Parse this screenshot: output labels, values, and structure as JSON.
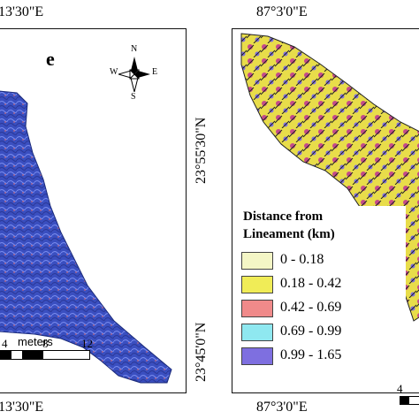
{
  "left_panel": {
    "top_coord": "13'30\"E",
    "bottom_coord": "13'30\"E",
    "panel_letter": "e",
    "compass": {
      "n": "N",
      "s": "S",
      "e": "E",
      "w": "W"
    },
    "scale_unit": "meters",
    "scale_ticks": [
      "4",
      "8",
      "12"
    ],
    "map_color": "#3a4fc0"
  },
  "center_coords": {
    "upper": "23°55'30\"N",
    "lower": "23°45'0\"N"
  },
  "right_panel": {
    "top_coord": "87°3'0\"E",
    "bottom_coord": "87°3'0\"E",
    "scale_tick": "4"
  },
  "legend": {
    "title_line1": "Distance from",
    "title_line2": "Lineament (km)",
    "items": [
      {
        "label": "0 - 0.18",
        "color": "#f4f6c6"
      },
      {
        "label": "0.18 - 0.42",
        "color": "#f0ec57"
      },
      {
        "label": "0.42 - 0.69",
        "color": "#f08a8a"
      },
      {
        "label": "0.69 - 0.99",
        "color": "#8fe8f0"
      },
      {
        "label": "0.99 - 1.65",
        "color": "#7e6fe0"
      }
    ]
  }
}
